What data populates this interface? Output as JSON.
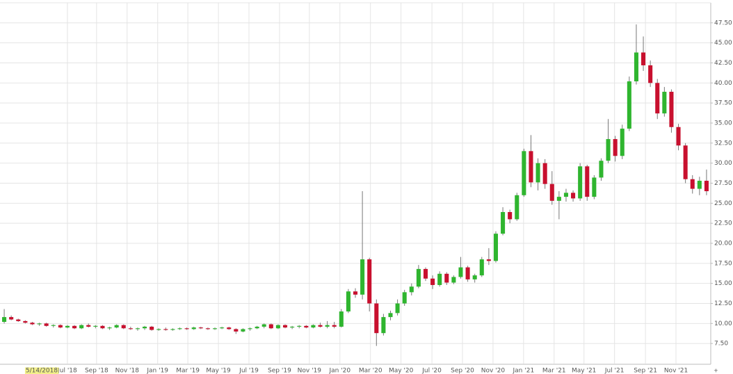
{
  "chart_data": {
    "type": "candlestick",
    "cursor_date": "5/14/2018",
    "up_color": "#2fb52f",
    "down_color": "#c8102e",
    "wick_color": "#777777",
    "grid": true,
    "xlim": [
      6.8,
      209.2
    ],
    "ylim": [
      5,
      50
    ],
    "xticks": [
      {
        "value": 26,
        "label": "Jul '18"
      },
      {
        "value": 34.3,
        "label": "Sep '18"
      },
      {
        "value": 43,
        "label": "Nov '18"
      },
      {
        "value": 51.7,
        "label": "Jan '19"
      },
      {
        "value": 60.3,
        "label": "Mar '19"
      },
      {
        "value": 69,
        "label": "May '19"
      },
      {
        "value": 77.7,
        "label": "Jul '19"
      },
      {
        "value": 86.4,
        "label": "Sep '19"
      },
      {
        "value": 94.9,
        "label": "Nov '19"
      },
      {
        "value": 103.6,
        "label": "Jan '20"
      },
      {
        "value": 112.3,
        "label": "Mar '20"
      },
      {
        "value": 121,
        "label": "May '20"
      },
      {
        "value": 129.8,
        "label": "Jul '20"
      },
      {
        "value": 138.5,
        "label": "Sep '20"
      },
      {
        "value": 147.2,
        "label": "Nov '20"
      },
      {
        "value": 155.9,
        "label": "Jan '21"
      },
      {
        "value": 164.6,
        "label": "Mar '21"
      },
      {
        "value": 173.1,
        "label": "May '21"
      },
      {
        "value": 181.8,
        "label": "Jul '21"
      },
      {
        "value": 190.6,
        "label": "Sep '21"
      },
      {
        "value": 199.3,
        "label": "Nov '21"
      }
    ],
    "yticks": [
      {
        "value": 7.5,
        "label": "7.50"
      },
      {
        "value": 10,
        "label": "10.00"
      },
      {
        "value": 12.5,
        "label": "12.50"
      },
      {
        "value": 15,
        "label": "15.00"
      },
      {
        "value": 17.5,
        "label": "17.50"
      },
      {
        "value": 20,
        "label": "20.00"
      },
      {
        "value": 22.5,
        "label": "22.50"
      },
      {
        "value": 25,
        "label": "25.00"
      },
      {
        "value": 27.5,
        "label": "27.50"
      },
      {
        "value": 30,
        "label": "30.00"
      },
      {
        "value": 32.5,
        "label": "32.50"
      },
      {
        "value": 35,
        "label": "35.00"
      },
      {
        "value": 37.5,
        "label": "37.50"
      },
      {
        "value": 40,
        "label": "40.00"
      },
      {
        "value": 42.5,
        "label": "42.50"
      },
      {
        "value": 45,
        "label": "45.00"
      },
      {
        "value": 47.5,
        "label": "47.50"
      }
    ],
    "x": [
      8,
      10,
      12,
      14,
      16,
      18,
      20,
      22,
      24,
      26,
      28,
      30,
      32,
      34,
      36,
      38,
      40,
      42,
      44,
      46,
      48,
      50,
      52,
      54,
      56,
      58,
      60,
      62,
      64,
      66,
      68,
      70,
      72,
      74,
      76,
      78,
      80,
      82,
      84,
      86,
      88,
      90,
      92,
      94,
      96,
      98,
      100,
      102,
      104,
      106,
      108,
      110,
      112,
      114,
      116,
      118,
      120,
      122,
      124,
      126,
      128,
      130,
      132,
      134,
      136,
      138,
      140,
      142,
      144,
      146,
      148,
      150,
      152,
      154,
      156,
      158,
      160,
      162,
      164,
      166,
      168,
      170,
      172,
      174,
      176,
      178,
      180,
      182,
      184,
      186,
      188,
      190,
      192,
      194,
      196,
      198,
      200,
      202,
      204,
      206,
      208
    ],
    "open": [
      10.2,
      10.8,
      10.5,
      10.3,
      10.1,
      9.9,
      10.0,
      9.7,
      9.8,
      9.5,
      9.7,
      9.4,
      9.8,
      9.6,
      9.7,
      9.4,
      9.5,
      9.8,
      9.4,
      9.3,
      9.4,
      9.6,
      9.2,
      9.3,
      9.2,
      9.3,
      9.4,
      9.3,
      9.5,
      9.4,
      9.3,
      9.4,
      9.5,
      9.3,
      9.0,
      9.3,
      9.4,
      9.6,
      9.9,
      9.4,
      9.8,
      9.5,
      9.6,
      9.7,
      9.5,
      9.8,
      9.6,
      9.8,
      9.6,
      11.5,
      14.0,
      13.6,
      18.0,
      12.5,
      8.8,
      10.8,
      11.3,
      12.5,
      13.9,
      14.6,
      16.8,
      15.6,
      14.8,
      16.2,
      15.1,
      15.8,
      17.0,
      15.5,
      16.0,
      18.0,
      17.8,
      21.2,
      23.9,
      23.0,
      26.0,
      31.5,
      27.6,
      30.0,
      27.4,
      25.3,
      25.8,
      26.3,
      25.6,
      29.6,
      25.8,
      28.2,
      30.3,
      33.0,
      30.9,
      34.3,
      40.2,
      43.8,
      42.2,
      40.0,
      36.2,
      38.9,
      34.5,
      32.2,
      28.0,
      26.8,
      27.8
    ],
    "high": [
      11.8,
      11.0,
      10.6,
      10.4,
      10.2,
      10.1,
      10.1,
      9.9,
      9.9,
      9.8,
      9.8,
      9.9,
      10.0,
      9.8,
      9.8,
      9.6,
      9.9,
      9.9,
      9.6,
      9.5,
      9.7,
      9.7,
      9.4,
      9.5,
      9.4,
      9.5,
      9.5,
      9.6,
      9.6,
      9.5,
      9.5,
      9.6,
      9.6,
      9.4,
      9.4,
      9.5,
      9.7,
      10.0,
      10.0,
      9.9,
      9.9,
      9.7,
      9.8,
      9.8,
      9.9,
      10.1,
      10.3,
      10.2,
      11.8,
      14.3,
      14.4,
      26.5,
      18.2,
      13.0,
      11.2,
      11.6,
      13.0,
      14.2,
      15.0,
      17.3,
      17.0,
      16.0,
      16.5,
      16.4,
      16.0,
      18.3,
      17.2,
      16.2,
      18.3,
      19.4,
      21.5,
      24.5,
      24.2,
      26.3,
      31.8,
      33.5,
      30.6,
      30.5,
      29.0,
      26.5,
      26.8,
      26.6,
      30.0,
      29.8,
      28.5,
      30.6,
      35.5,
      33.4,
      34.8,
      40.8,
      47.3,
      45.8,
      42.8,
      40.5,
      39.5,
      39.2,
      34.9,
      32.5,
      28.5,
      28.3,
      29.2
    ],
    "low": [
      10.0,
      10.4,
      10.2,
      10.0,
      9.8,
      9.7,
      9.6,
      9.5,
      9.4,
      9.4,
      9.3,
      9.3,
      9.5,
      9.4,
      9.3,
      9.2,
      9.4,
      9.3,
      9.2,
      9.1,
      9.2,
      9.1,
      9.1,
      9.1,
      9.1,
      9.2,
      9.2,
      9.2,
      9.3,
      9.2,
      9.2,
      9.3,
      9.2,
      8.7,
      8.9,
      9.1,
      9.3,
      9.4,
      9.3,
      9.3,
      9.4,
      9.3,
      9.4,
      9.4,
      9.4,
      9.5,
      9.4,
      9.4,
      9.5,
      11.3,
      13.2,
      13.0,
      11.5,
      7.2,
      8.5,
      10.4,
      11.0,
      12.2,
      13.5,
      14.4,
      15.3,
      14.3,
      14.6,
      14.8,
      14.9,
      15.6,
      15.2,
      15.1,
      15.8,
      17.3,
      17.6,
      21.0,
      22.5,
      22.8,
      25.8,
      27.0,
      26.6,
      26.8,
      24.8,
      23.0,
      25.2,
      25.2,
      25.3,
      25.3,
      25.5,
      27.8,
      30.0,
      30.2,
      30.5,
      34.0,
      39.8,
      41.5,
      39.5,
      35.5,
      35.8,
      33.8,
      31.6,
      27.5,
      26.2,
      26.0,
      26.0
    ],
    "close": [
      10.8,
      10.5,
      10.3,
      10.1,
      9.9,
      10.0,
      9.7,
      9.8,
      9.5,
      9.7,
      9.4,
      9.8,
      9.6,
      9.7,
      9.4,
      9.5,
      9.8,
      9.4,
      9.3,
      9.4,
      9.6,
      9.2,
      9.3,
      9.2,
      9.3,
      9.4,
      9.3,
      9.5,
      9.4,
      9.3,
      9.4,
      9.5,
      9.3,
      9.0,
      9.3,
      9.4,
      9.6,
      9.9,
      9.4,
      9.8,
      9.5,
      9.6,
      9.7,
      9.5,
      9.8,
      9.6,
      9.8,
      9.6,
      11.5,
      14.0,
      13.6,
      18.0,
      12.5,
      8.8,
      10.8,
      11.3,
      12.5,
      13.9,
      14.6,
      16.8,
      15.6,
      14.8,
      16.2,
      15.1,
      15.8,
      17.0,
      15.5,
      16.0,
      18.0,
      17.8,
      21.2,
      23.9,
      23.0,
      26.0,
      31.5,
      27.6,
      30.0,
      27.4,
      25.3,
      25.8,
      26.3,
      25.6,
      29.6,
      25.8,
      28.2,
      30.3,
      33.0,
      30.9,
      34.3,
      40.2,
      43.8,
      42.2,
      40.0,
      36.2,
      38.9,
      34.5,
      32.2,
      28.0,
      26.8,
      27.8,
      26.5
    ]
  }
}
